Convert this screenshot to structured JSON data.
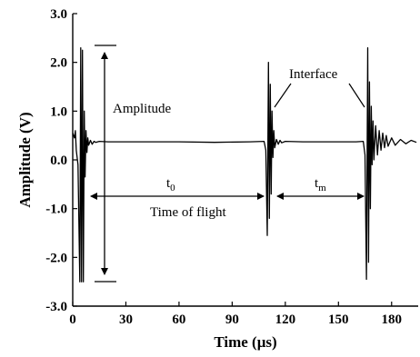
{
  "chart_data": {
    "type": "line",
    "title": "",
    "xlabel": "Time (μs)",
    "ylabel": "Amplitude (V)",
    "xlim": [
      0,
      195
    ],
    "ylim": [
      -3.0,
      3.0
    ],
    "x_ticks": [
      0,
      30,
      60,
      90,
      120,
      150,
      180
    ],
    "x_tick_labels": [
      "0",
      "30",
      "60",
      "90",
      "120",
      "150",
      "180"
    ],
    "y_ticks": [
      3.0,
      2.0,
      1.0,
      0.0,
      -1.0,
      -2.0,
      -3.0
    ],
    "y_tick_labels": [
      "3.0",
      "2.0",
      "1.0",
      "0.0",
      "-1.0",
      "-2.0",
      "-3.0"
    ],
    "grid": false,
    "legend": "none",
    "line_color": "#000000",
    "series": [
      {
        "x": [
          0,
          1,
          1.5,
          2,
          3,
          4,
          4.5,
          5,
          5.5,
          6,
          6.5,
          7,
          7.5,
          8,
          8.5,
          9,
          10,
          11,
          12,
          13,
          15,
          20,
          40,
          60,
          80,
          100,
          108,
          109,
          109.8,
          110.5,
          111,
          111.5,
          112,
          112.5,
          113,
          113.5,
          114,
          115,
          116,
          117,
          118,
          120,
          130,
          140,
          150,
          160,
          164,
          165,
          165.8,
          166.5,
          167,
          167.5,
          168,
          168.5,
          169,
          169.5,
          170,
          171,
          172,
          173,
          174,
          175,
          176,
          177,
          178,
          180,
          182,
          185,
          188,
          191,
          194
        ],
        "values": [
          0.55,
          0.45,
          0.6,
          0.2,
          -0.1,
          -2.5,
          2.3,
          -2.5,
          2.25,
          -2.5,
          1.0,
          -0.35,
          0.6,
          0.15,
          0.45,
          0.3,
          0.4,
          0.32,
          0.38,
          0.36,
          0.38,
          0.37,
          0.37,
          0.37,
          0.36,
          0.37,
          0.38,
          0.2,
          -1.55,
          2.0,
          -1.2,
          1.55,
          -0.7,
          1.0,
          0.05,
          0.6,
          0.25,
          0.42,
          0.32,
          0.4,
          0.35,
          0.38,
          0.37,
          0.37,
          0.37,
          0.37,
          0.38,
          0.1,
          -2.45,
          2.3,
          -2.1,
          1.6,
          -1.0,
          1.1,
          -0.1,
          0.8,
          0.0,
          0.7,
          0.1,
          0.6,
          0.2,
          0.55,
          0.25,
          0.5,
          0.28,
          0.45,
          0.3,
          0.42,
          0.33,
          0.4,
          0.36
        ]
      }
    ],
    "annotations": {
      "amplitude": "Amplitude",
      "interface": "Interface",
      "t0_main": "t",
      "t0_sub": "0",
      "tm_main": "t",
      "tm_sub": "m",
      "time_of_flight": "Time of flight"
    }
  }
}
